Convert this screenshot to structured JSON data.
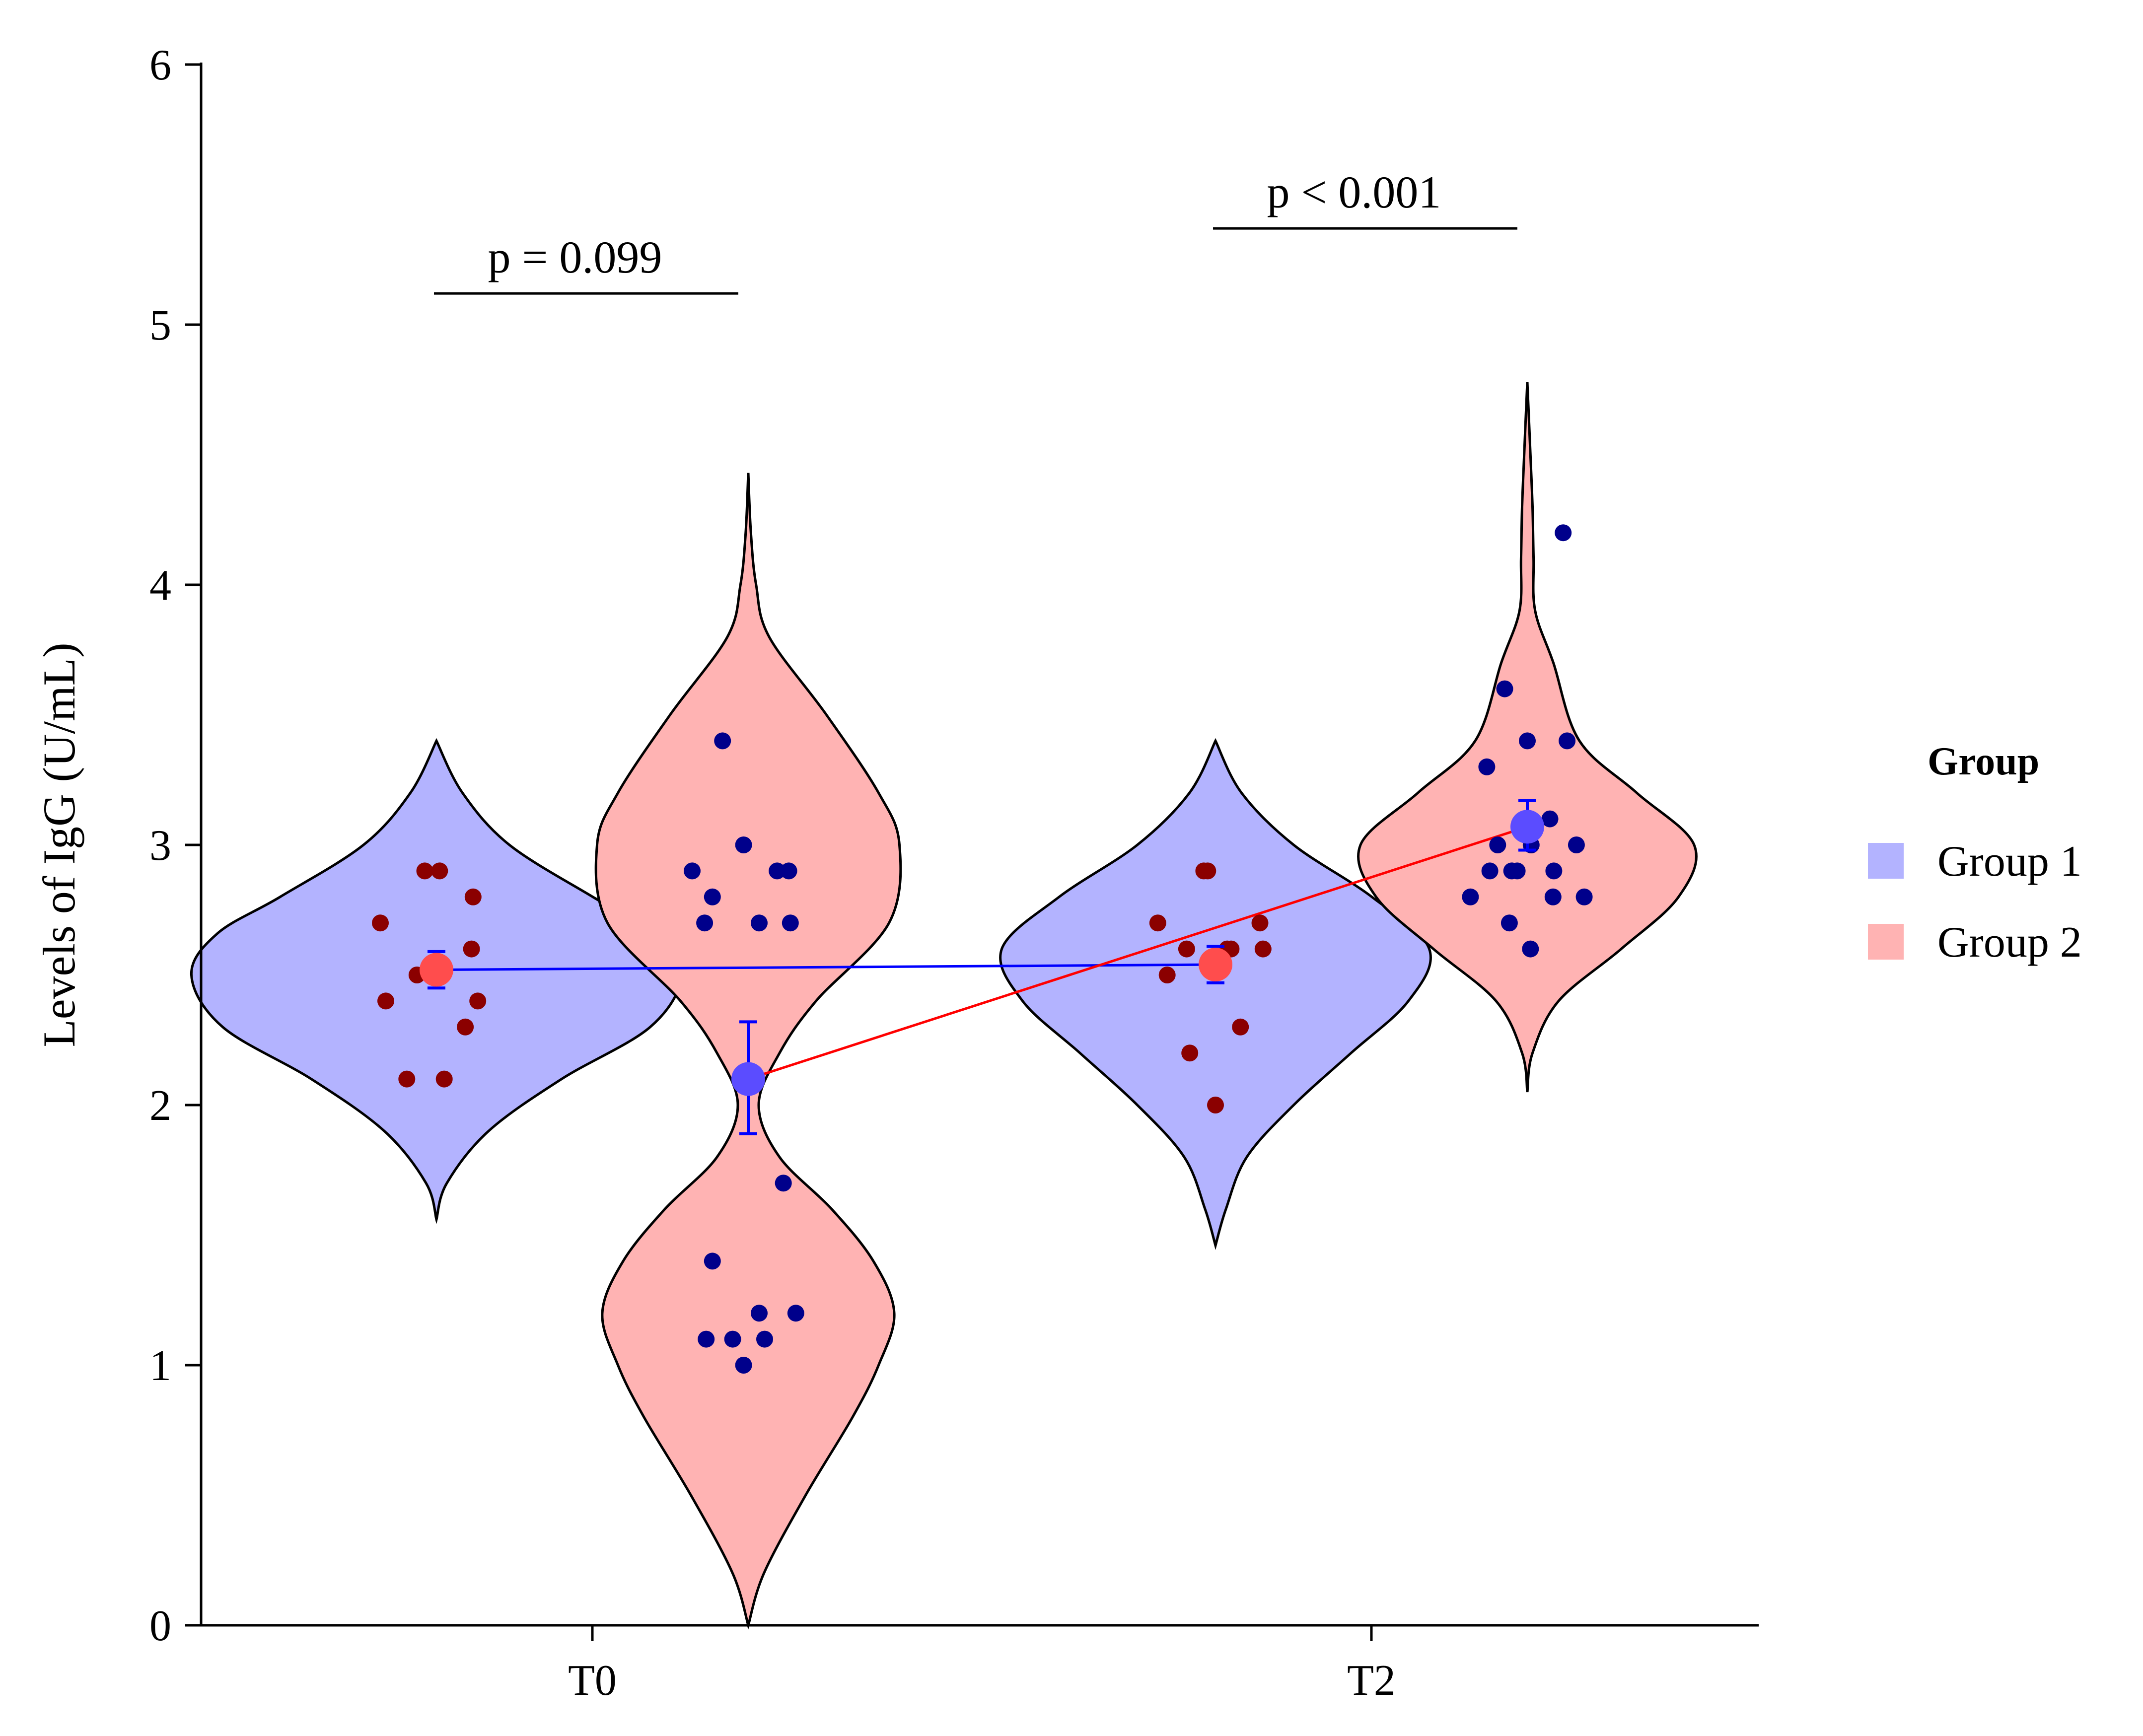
{
  "chart_data": {
    "type": "violin",
    "title": "",
    "xlabel": "",
    "ylabel": "Levels of IgG (U/mL)",
    "ylim": [
      0,
      6
    ],
    "yticks": [
      0,
      1,
      2,
      3,
      4,
      5,
      6
    ],
    "categories": [
      "T0",
      "T2"
    ],
    "grid": false,
    "legend": {
      "title": "Group",
      "position": "right",
      "entries": [
        {
          "name": "Group 1",
          "color": "#b3b3ff"
        },
        {
          "name": "Group 2",
          "color": "#ffb3b3"
        }
      ]
    },
    "series": [
      {
        "name": "Group 1",
        "fill": "#b3b3ff",
        "point_color": "#8b0000",
        "mean_color": "#ff4d4d",
        "line_color": "#0000ff",
        "groups": [
          {
            "category": "T0",
            "offset": -0.2,
            "mean": 2.52,
            "error_low": 2.45,
            "error_high": 2.59,
            "range": [
              1.56,
              3.4
            ],
            "density": [
              [
                1.56,
                0.0
              ],
              [
                1.7,
                0.02
              ],
              [
                1.9,
                0.1
              ],
              [
                2.1,
                0.24
              ],
              [
                2.3,
                0.41
              ],
              [
                2.5,
                0.47
              ],
              [
                2.66,
                0.42
              ],
              [
                2.8,
                0.3
              ],
              [
                3.0,
                0.14
              ],
              [
                3.2,
                0.05
              ],
              [
                3.4,
                0.0
              ]
            ],
            "points": [
              {
                "dx": -0.072,
                "y": 2.7
              },
              {
                "dx": -0.015,
                "y": 2.9
              },
              {
                "dx": 0.004,
                "y": 2.9
              },
              {
                "dx": 0.047,
                "y": 2.8
              },
              {
                "dx": -0.025,
                "y": 2.5
              },
              {
                "dx": 0.0,
                "y": 2.5
              },
              {
                "dx": 0.045,
                "y": 2.6
              },
              {
                "dx": -0.065,
                "y": 2.4
              },
              {
                "dx": 0.053,
                "y": 2.4
              },
              {
                "dx": 0.037,
                "y": 2.3
              },
              {
                "dx": -0.038,
                "y": 2.1
              },
              {
                "dx": 0.01,
                "y": 2.1
              }
            ]
          },
          {
            "category": "T2",
            "offset": -0.2,
            "mean": 2.54,
            "error_low": 2.47,
            "error_high": 2.61,
            "range": [
              1.46,
              3.4
            ],
            "density": [
              [
                1.46,
                0.0
              ],
              [
                1.6,
                0.02
              ],
              [
                1.8,
                0.06
              ],
              [
                2.0,
                0.15
              ],
              [
                2.2,
                0.26
              ],
              [
                2.4,
                0.37
              ],
              [
                2.6,
                0.41
              ],
              [
                2.8,
                0.3
              ],
              [
                3.0,
                0.15
              ],
              [
                3.2,
                0.05
              ],
              [
                3.4,
                0.0
              ]
            ],
            "points": [
              {
                "dx": -0.074,
                "y": 2.7
              },
              {
                "dx": -0.015,
                "y": 2.9
              },
              {
                "dx": -0.01,
                "y": 2.9
              },
              {
                "dx": 0.057,
                "y": 2.7
              },
              {
                "dx": -0.037,
                "y": 2.6
              },
              {
                "dx": 0.015,
                "y": 2.6
              },
              {
                "dx": 0.02,
                "y": 2.6
              },
              {
                "dx": 0.061,
                "y": 2.6
              },
              {
                "dx": -0.062,
                "y": 2.5
              },
              {
                "dx": 0.032,
                "y": 2.3
              },
              {
                "dx": -0.033,
                "y": 2.2
              },
              {
                "dx": 0.0,
                "y": 2.0
              }
            ]
          }
        ]
      },
      {
        "name": "Group 2",
        "fill": "#ffb3b3",
        "point_color": "#00008b",
        "mean_color": "#5b4cff",
        "line_color": "#ff0000",
        "groups": [
          {
            "category": "T0",
            "offset": 0.2,
            "mean": 2.1,
            "error_low": 1.89,
            "error_high": 2.32,
            "range": [
              0.0,
              4.43
            ],
            "density": [
              [
                0.0,
                0.0
              ],
              [
                0.2,
                0.03
              ],
              [
                0.5,
                0.11
              ],
              [
                0.8,
                0.2
              ],
              [
                1.0,
                0.25
              ],
              [
                1.2,
                0.28
              ],
              [
                1.4,
                0.24
              ],
              [
                1.6,
                0.16
              ],
              [
                1.8,
                0.06
              ],
              [
                2.0,
                0.02
              ],
              [
                2.2,
                0.06
              ],
              [
                2.4,
                0.13
              ],
              [
                2.7,
                0.27
              ],
              [
                3.0,
                0.29
              ],
              [
                3.2,
                0.25
              ],
              [
                3.5,
                0.15
              ],
              [
                3.8,
                0.04
              ],
              [
                4.0,
                0.015
              ],
              [
                4.2,
                0.005
              ],
              [
                4.43,
                0.0
              ]
            ],
            "points": [
              {
                "dx": -0.033,
                "y": 3.4
              },
              {
                "dx": -0.072,
                "y": 2.9
              },
              {
                "dx": -0.006,
                "y": 3.0
              },
              {
                "dx": 0.037,
                "y": 2.9
              },
              {
                "dx": 0.052,
                "y": 2.9
              },
              {
                "dx": -0.046,
                "y": 2.8
              },
              {
                "dx": -0.056,
                "y": 2.7
              },
              {
                "dx": 0.014,
                "y": 2.7
              },
              {
                "dx": 0.054,
                "y": 2.7
              },
              {
                "dx": 0.045,
                "y": 1.7
              },
              {
                "dx": -0.046,
                "y": 1.4
              },
              {
                "dx": 0.014,
                "y": 1.2
              },
              {
                "dx": 0.061,
                "y": 1.2
              },
              {
                "dx": -0.054,
                "y": 1.1
              },
              {
                "dx": -0.02,
                "y": 1.1
              },
              {
                "dx": 0.021,
                "y": 1.1
              },
              {
                "dx": -0.006,
                "y": 1.0
              }
            ]
          },
          {
            "category": "T2",
            "offset": 0.2,
            "mean": 3.07,
            "error_low": 2.98,
            "error_high": 3.17,
            "range": [
              2.05,
              4.78
            ],
            "density": [
              [
                2.05,
                0.0
              ],
              [
                2.2,
                0.01
              ],
              [
                2.4,
                0.06
              ],
              [
                2.6,
                0.18
              ],
              [
                2.8,
                0.29
              ],
              [
                3.0,
                0.32
              ],
              [
                3.2,
                0.21
              ],
              [
                3.4,
                0.1
              ],
              [
                3.7,
                0.05
              ],
              [
                3.9,
                0.015
              ],
              [
                4.1,
                0.012
              ],
              [
                4.3,
                0.01
              ],
              [
                4.5,
                0.006
              ],
              [
                4.78,
                0.0
              ]
            ],
            "points": [
              {
                "dx": 0.046,
                "y": 4.2
              },
              {
                "dx": -0.029,
                "y": 3.6
              },
              {
                "dx": 0.0,
                "y": 3.4
              },
              {
                "dx": 0.051,
                "y": 3.4
              },
              {
                "dx": -0.052,
                "y": 3.3
              },
              {
                "dx": 0.029,
                "y": 3.1
              },
              {
                "dx": -0.038,
                "y": 3.0
              },
              {
                "dx": 0.005,
                "y": 3.0
              },
              {
                "dx": 0.063,
                "y": 3.0
              },
              {
                "dx": -0.048,
                "y": 2.9
              },
              {
                "dx": -0.02,
                "y": 2.9
              },
              {
                "dx": -0.013,
                "y": 2.9
              },
              {
                "dx": 0.034,
                "y": 2.9
              },
              {
                "dx": -0.073,
                "y": 2.8
              },
              {
                "dx": 0.033,
                "y": 2.8
              },
              {
                "dx": 0.073,
                "y": 2.8
              },
              {
                "dx": -0.023,
                "y": 2.7
              },
              {
                "dx": 0.004,
                "y": 2.6
              }
            ]
          }
        ]
      }
    ],
    "annotations": [
      {
        "category": "T0",
        "text": "p = 0.099",
        "y": 5.12
      },
      {
        "category": "T2",
        "text": "p < 0.001",
        "y": 5.37
      }
    ]
  }
}
